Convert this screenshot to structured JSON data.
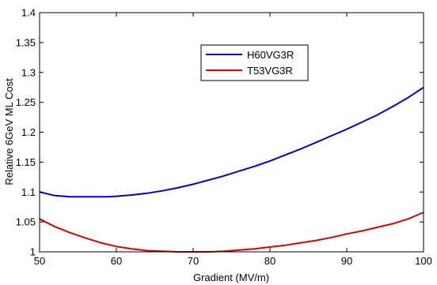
{
  "chart_data": {
    "type": "line",
    "title": "",
    "xlabel": "Gradient (MV/m)",
    "ylabel": "Relative 6GeV ML Cost",
    "xlim": [
      50,
      100
    ],
    "ylim": [
      1.0,
      1.4
    ],
    "xticks": [
      50,
      60,
      70,
      80,
      90,
      100
    ],
    "xtick_labels": [
      "50",
      "60",
      "70",
      "80",
      "90",
      "100"
    ],
    "yticks": [
      1.0,
      1.05,
      1.1,
      1.15,
      1.2,
      1.25,
      1.3,
      1.35,
      1.4
    ],
    "ytick_labels": [
      "1",
      "1.05",
      "1.1",
      "1.15",
      "1.2",
      "1.25",
      "1.3",
      "1.35",
      "1.4"
    ],
    "grid": false,
    "legend_position": "upper-center",
    "series": [
      {
        "name": "H60VG3R",
        "color": "#0000cc",
        "x": [
          50,
          52,
          54,
          56,
          58,
          59,
          60,
          62,
          64,
          66,
          68,
          70,
          72,
          74,
          76,
          78,
          80,
          82,
          84,
          86,
          88,
          90,
          92,
          94,
          96,
          98,
          100
        ],
        "y": [
          1.1,
          1.094,
          1.092,
          1.092,
          1.092,
          1.092,
          1.093,
          1.095,
          1.098,
          1.102,
          1.107,
          1.113,
          1.12,
          1.127,
          1.135,
          1.143,
          1.152,
          1.162,
          1.172,
          1.183,
          1.194,
          1.205,
          1.217,
          1.229,
          1.243,
          1.258,
          1.275
        ]
      },
      {
        "name": "T53VG3R",
        "color": "#dd0000",
        "x": [
          50,
          52,
          54,
          56,
          58,
          60,
          62,
          64,
          66,
          68,
          70,
          72,
          74,
          76,
          78,
          80,
          82,
          84,
          86,
          88,
          90,
          92,
          94,
          96,
          98,
          100
        ],
        "y": [
          1.055,
          1.042,
          1.032,
          1.023,
          1.015,
          1.009,
          1.005,
          1.002,
          1.001,
          1.0,
          1.0,
          1.0,
          1.001,
          1.003,
          1.005,
          1.008,
          1.011,
          1.015,
          1.019,
          1.024,
          1.03,
          1.035,
          1.041,
          1.047,
          1.055,
          1.066
        ]
      }
    ]
  }
}
